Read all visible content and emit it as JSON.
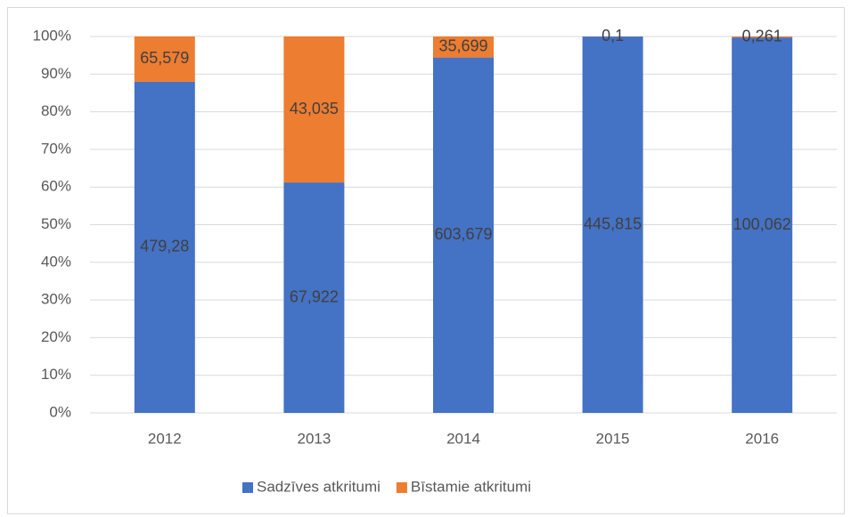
{
  "chart_data": {
    "type": "bar",
    "stacked": "percent",
    "categories": [
      "2012",
      "2013",
      "2014",
      "2015",
      "2016"
    ],
    "series": [
      {
        "name": "Sadzīves atkritumi",
        "color": "#4472c4",
        "values": [
          479.28,
          67.922,
          603.679,
          445.815,
          100.062
        ],
        "value_labels": [
          "479,28",
          "67,922",
          "603,679",
          "445,815",
          "100,062"
        ]
      },
      {
        "name": "Bīstamie atkritumi",
        "color": "#ed7d31",
        "values": [
          65.579,
          43.035,
          35.699,
          0.1,
          0.261
        ],
        "value_labels": [
          "65,579",
          "43,035",
          "35,699",
          "0,1",
          "0,261"
        ]
      }
    ],
    "ylim": [
      0,
      100
    ],
    "yticks": [
      {
        "value": 0,
        "label": "0%"
      },
      {
        "value": 10,
        "label": "10%"
      },
      {
        "value": 20,
        "label": "20%"
      },
      {
        "value": 30,
        "label": "30%"
      },
      {
        "value": 40,
        "label": "40%"
      },
      {
        "value": 50,
        "label": "50%"
      },
      {
        "value": 60,
        "label": "60%"
      },
      {
        "value": 70,
        "label": "70%"
      },
      {
        "value": 80,
        "label": "80%"
      },
      {
        "value": 90,
        "label": "90%"
      },
      {
        "value": 100,
        "label": "100%"
      }
    ],
    "grid": true,
    "legend": "bottom"
  }
}
